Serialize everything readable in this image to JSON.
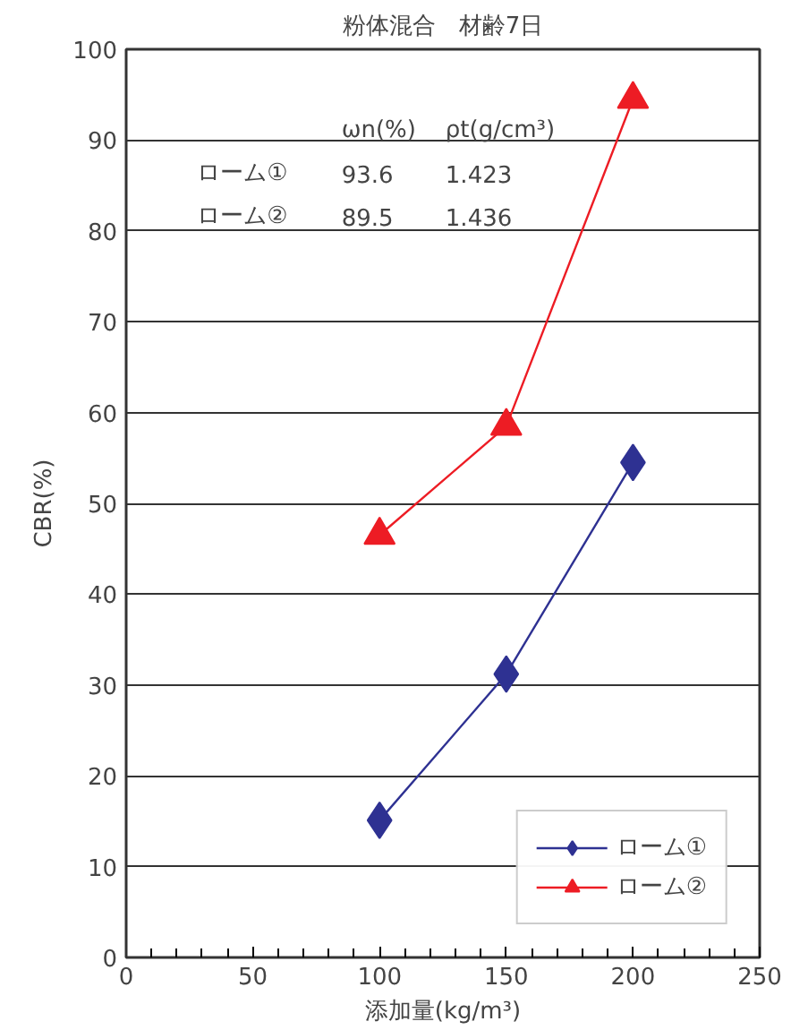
{
  "chart_data": {
    "type": "line",
    "title": "粉体混合　材齢7日",
    "xlabel": "添加量(kg/m³)",
    "ylabel": "CBR(%)",
    "x": [
      100,
      150,
      200
    ],
    "series": [
      {
        "name": "ローム①",
        "color": "#2e3192",
        "values": [
          15.1,
          31.2,
          54.5
        ],
        "marker": "diamond"
      },
      {
        "name": "ローム②",
        "color": "#ed1c24",
        "values": [
          46.5,
          58.5,
          94.5
        ],
        "marker": "triangle"
      }
    ],
    "xlim": [
      0,
      250
    ],
    "xticks": [
      0,
      50,
      100,
      150,
      200,
      250
    ],
    "ylim": [
      0,
      100
    ],
    "yticks": [
      0,
      10,
      20,
      30,
      40,
      50,
      60,
      70,
      80,
      90,
      100
    ],
    "grid": "y",
    "legend": "bottom right",
    "line_style": "solid",
    "annotations": [
      "ωn(%)",
      "ρt(g/cm³)",
      "ローム①",
      "93.6",
      "1.423",
      "ローム②",
      "89.5",
      "1.436"
    ]
  }
}
